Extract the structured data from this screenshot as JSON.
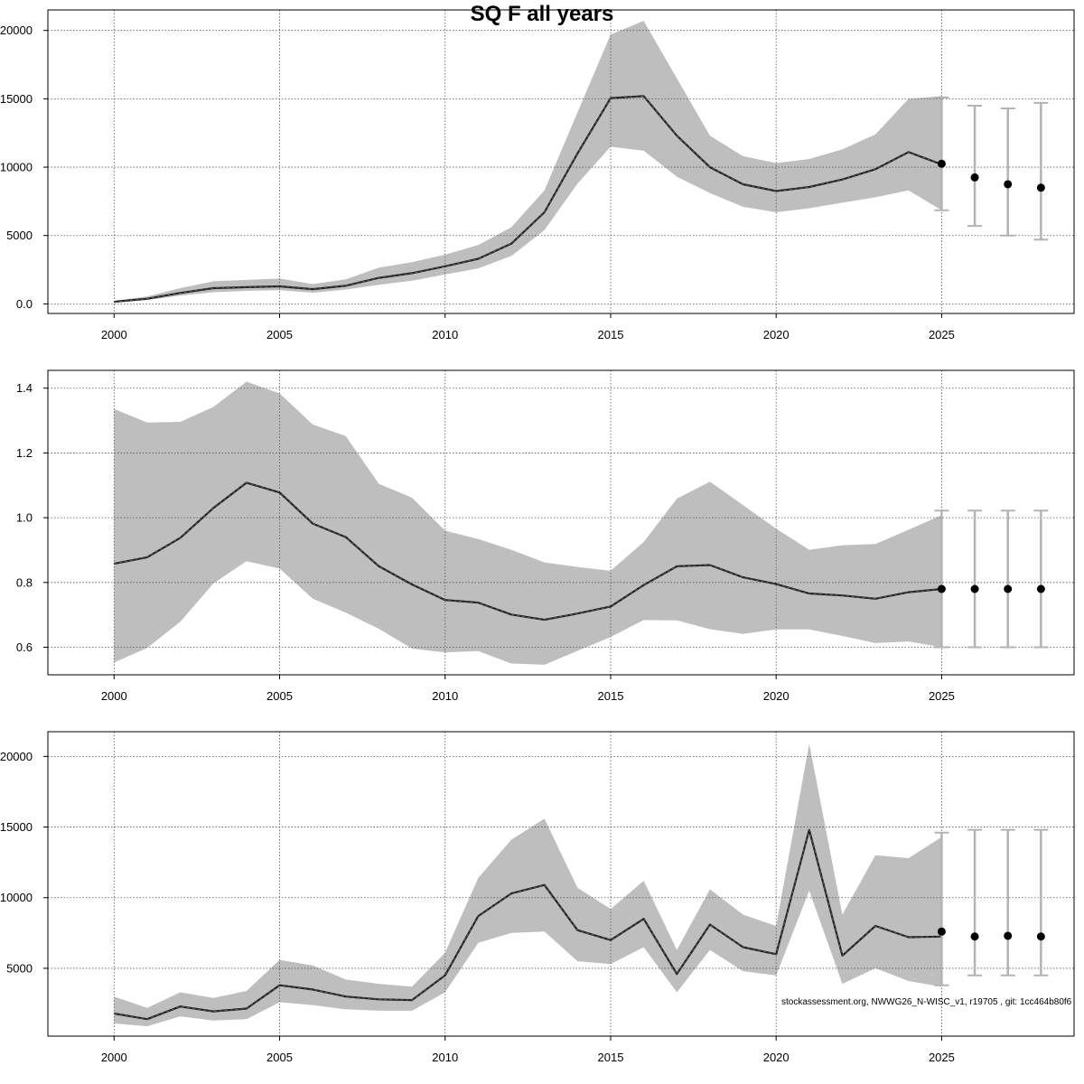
{
  "title": "SQ F all years",
  "footnote": "stockassessment.org, NWWG26_N-WISC_v1, r19705 , git: 1cc464b80f6",
  "colors": {
    "band": "#bebebe",
    "line": "#222222",
    "grid": "#555555",
    "forecast_bar": "#b3b3b3",
    "point": "#000000"
  },
  "chart_data": [
    {
      "type": "line",
      "panel": "top",
      "xlim": [
        1998,
        2029
      ],
      "ylim": [
        -700,
        21500
      ],
      "x_ticks": [
        2000,
        2005,
        2010,
        2015,
        2020,
        2025
      ],
      "y_ticks": [
        0,
        5000,
        10000,
        15000,
        20000
      ],
      "grid": true,
      "x": [
        2000,
        2001,
        2002,
        2003,
        2004,
        2005,
        2006,
        2007,
        2008,
        2009,
        2010,
        2011,
        2012,
        2013,
        2014,
        2015,
        2016,
        2017,
        2018,
        2019,
        2020,
        2021,
        2022,
        2023,
        2024,
        2025
      ],
      "estimate": [
        150,
        380,
        800,
        1150,
        1220,
        1280,
        1080,
        1330,
        1900,
        2250,
        2750,
        3300,
        4400,
        6700,
        11000,
        15050,
        15200,
        12300,
        10000,
        8750,
        8250,
        8550,
        9100,
        9850,
        11100,
        10200
      ],
      "lower": [
        90,
        280,
        600,
        850,
        950,
        1000,
        820,
        1050,
        1400,
        1700,
        2150,
        2600,
        3500,
        5400,
        8800,
        11500,
        11200,
        9300,
        8100,
        7100,
        6700,
        7000,
        7400,
        7800,
        8300,
        6850
      ],
      "upper": [
        220,
        550,
        1150,
        1650,
        1750,
        1850,
        1450,
        1800,
        2650,
        3050,
        3600,
        4300,
        5600,
        8300,
        14000,
        19700,
        20700,
        16500,
        12300,
        10800,
        10300,
        10600,
        11300,
        12400,
        15000,
        15200
      ],
      "forecast": [
        {
          "x": 2025,
          "value": 10250,
          "lower": 6850,
          "upper": 15100
        },
        {
          "x": 2026,
          "value": 9250,
          "lower": 5700,
          "upper": 14500
        },
        {
          "x": 2027,
          "value": 8750,
          "lower": 5000,
          "upper": 14300
        },
        {
          "x": 2028,
          "value": 8500,
          "lower": 4700,
          "upper": 14700
        }
      ]
    },
    {
      "type": "line",
      "panel": "middle",
      "xlim": [
        1998,
        2029
      ],
      "ylim": [
        0.515,
        1.455
      ],
      "x_ticks": [
        2000,
        2005,
        2010,
        2015,
        2020,
        2025
      ],
      "y_ticks": [
        0.6,
        0.8,
        1.0,
        1.2,
        1.4
      ],
      "grid": true,
      "x": [
        2000,
        2001,
        2002,
        2003,
        2004,
        2005,
        2006,
        2007,
        2008,
        2009,
        2010,
        2011,
        2012,
        2013,
        2014,
        2015,
        2016,
        2017,
        2018,
        2019,
        2020,
        2021,
        2022,
        2023,
        2024,
        2025
      ],
      "estimate": [
        0.858,
        0.878,
        0.938,
        1.03,
        1.108,
        1.078,
        0.982,
        0.94,
        0.85,
        0.794,
        0.746,
        0.738,
        0.701,
        0.685,
        0.704,
        0.726,
        0.792,
        0.85,
        0.854,
        0.816,
        0.795,
        0.766,
        0.76,
        0.75,
        0.77,
        0.78
      ],
      "lower": [
        0.553,
        0.598,
        0.679,
        0.797,
        0.866,
        0.843,
        0.75,
        0.707,
        0.657,
        0.596,
        0.584,
        0.588,
        0.55,
        0.546,
        0.589,
        0.632,
        0.684,
        0.683,
        0.656,
        0.641,
        0.655,
        0.655,
        0.635,
        0.613,
        0.618,
        0.6
      ],
      "upper": [
        1.336,
        1.294,
        1.296,
        1.342,
        1.42,
        1.384,
        1.288,
        1.252,
        1.104,
        1.062,
        0.96,
        0.934,
        0.901,
        0.862,
        0.848,
        0.836,
        0.925,
        1.059,
        1.111,
        1.039,
        0.966,
        0.901,
        0.915,
        0.919,
        0.963,
        1.008
      ],
      "forecast": [
        {
          "x": 2025,
          "value": 0.78,
          "lower": 0.6,
          "upper": 1.022
        },
        {
          "x": 2026,
          "value": 0.78,
          "lower": 0.6,
          "upper": 1.022
        },
        {
          "x": 2027,
          "value": 0.78,
          "lower": 0.6,
          "upper": 1.022
        },
        {
          "x": 2028,
          "value": 0.78,
          "lower": 0.6,
          "upper": 1.022
        }
      ]
    },
    {
      "type": "line",
      "panel": "bottom",
      "xlim": [
        1998,
        2029
      ],
      "ylim": [
        200,
        21750
      ],
      "x_ticks": [
        2000,
        2005,
        2010,
        2015,
        2020,
        2025
      ],
      "y_ticks": [
        5000,
        10000,
        15000,
        20000
      ],
      "grid": true,
      "x": [
        2000,
        2001,
        2002,
        2003,
        2004,
        2005,
        2006,
        2007,
        2008,
        2009,
        2010,
        2011,
        2012,
        2013,
        2014,
        2015,
        2016,
        2017,
        2018,
        2019,
        2020,
        2021,
        2022,
        2023,
        2024,
        2025
      ],
      "estimate": [
        1800,
        1400,
        2300,
        1950,
        2150,
        3800,
        3500,
        3000,
        2800,
        2750,
        4500,
        8700,
        10300,
        10900,
        7700,
        7000,
        8500,
        4600,
        8100,
        6500,
        6000,
        14800,
        5900,
        8000,
        7200,
        7250
      ],
      "lower": [
        1100,
        900,
        1600,
        1300,
        1400,
        2600,
        2400,
        2100,
        2000,
        2000,
        3300,
        6800,
        7500,
        7600,
        5500,
        5300,
        6500,
        3300,
        6300,
        4800,
        4500,
        10500,
        3900,
        5000,
        4100,
        3700
      ],
      "upper": [
        3000,
        2200,
        3300,
        2900,
        3400,
        5600,
        5200,
        4200,
        3900,
        3700,
        6100,
        11400,
        14100,
        15600,
        10700,
        9200,
        11200,
        6300,
        10600,
        8800,
        8000,
        20900,
        8800,
        13000,
        12800,
        14300
      ],
      "forecast": [
        {
          "x": 2025,
          "value": 7600,
          "lower": 3800,
          "upper": 14600
        },
        {
          "x": 2026,
          "value": 7250,
          "lower": 4500,
          "upper": 14800
        },
        {
          "x": 2027,
          "value": 7300,
          "lower": 4500,
          "upper": 14800
        },
        {
          "x": 2028,
          "value": 7250,
          "lower": 4500,
          "upper": 14800
        }
      ]
    }
  ]
}
